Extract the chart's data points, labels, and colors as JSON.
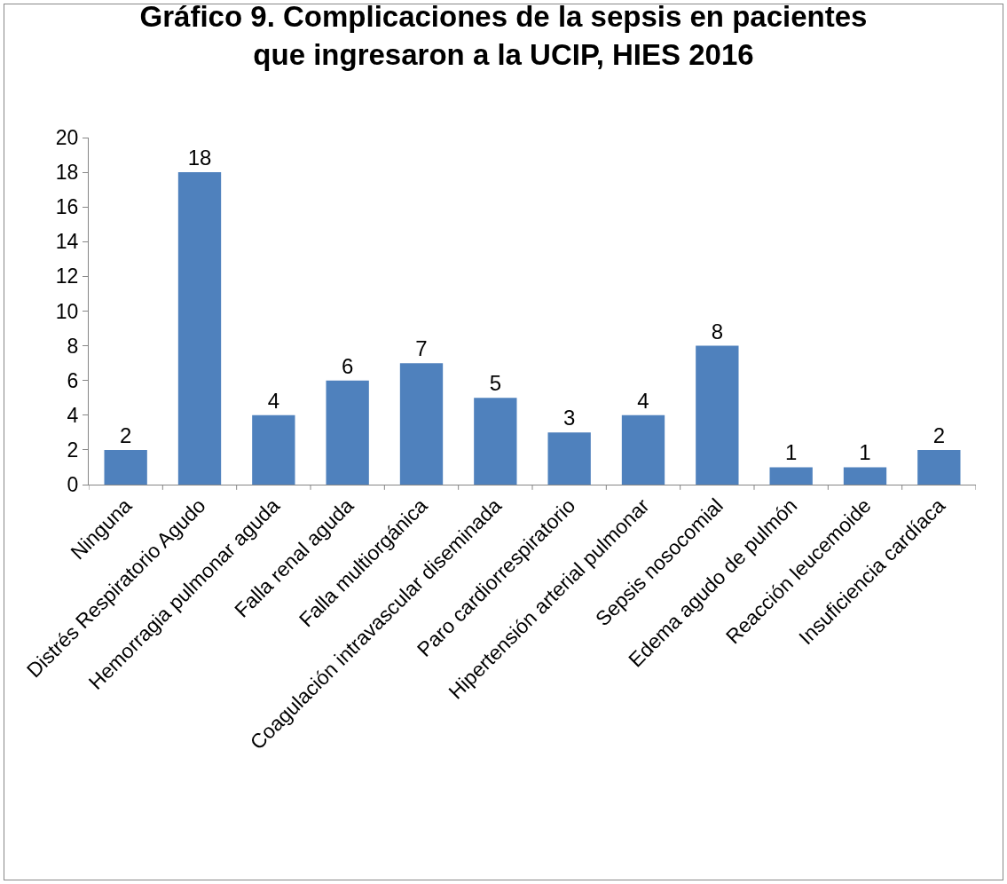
{
  "chart_data": {
    "type": "bar",
    "title": "Gráfico 9. Complicaciones de la sepsis en pacientes que ingresaron a la UCIP, HIES 2016",
    "categories": [
      "Ninguna",
      "Distrés Respiratorio Agudo",
      "Hemorragia pulmonar aguda",
      "Falla renal aguda",
      "Falla multiorgánica",
      "Coagulación intravascular diseminada",
      "Paro cardiorrespiratorio",
      "Hipertensión arterial pulmonar",
      "Sepsis nosocomial",
      "Edema agudo de pulmón",
      "Reacción leucemoide",
      "Insuficiencia cardíaca"
    ],
    "values": [
      2,
      18,
      4,
      6,
      7,
      5,
      3,
      4,
      8,
      1,
      1,
      2
    ],
    "color": "#4f81bd",
    "ylim": [
      0,
      20
    ],
    "yticks": [
      0,
      2,
      4,
      6,
      8,
      10,
      12,
      14,
      16,
      18,
      20
    ],
    "grid": false,
    "legend": false,
    "data_labels": true
  }
}
